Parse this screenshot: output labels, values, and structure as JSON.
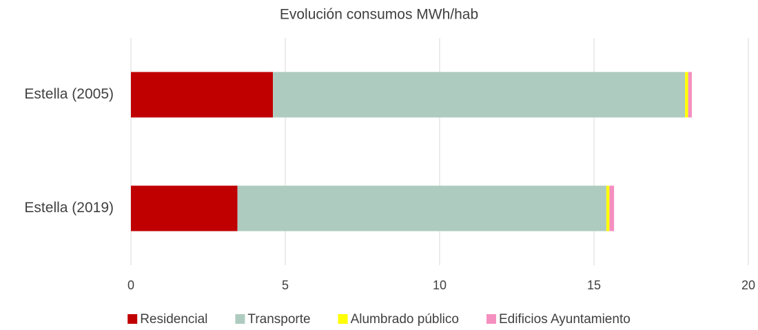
{
  "chart_data": {
    "type": "stacked_barh",
    "title": "Evolución consumos MWh/hab",
    "categories": [
      "Estella (2005)",
      "Estella (2019)"
    ],
    "series": [
      {
        "name": "Residencial",
        "color": "#c00000",
        "values": [
          4.6,
          3.45
        ]
      },
      {
        "name": "Transporte",
        "color": "#aecbbf",
        "values": [
          13.35,
          11.95
        ]
      },
      {
        "name": "Alumbrado público",
        "color": "#ffff00",
        "values": [
          0.1,
          0.1
        ]
      },
      {
        "name": "Edificios Ayuntamiento",
        "color": "#f48fc0",
        "values": [
          0.12,
          0.15
        ]
      }
    ],
    "xlim": [
      0,
      20
    ],
    "xticks": [
      0,
      5,
      10,
      15,
      20
    ],
    "grid": true,
    "legend": "bottom"
  }
}
